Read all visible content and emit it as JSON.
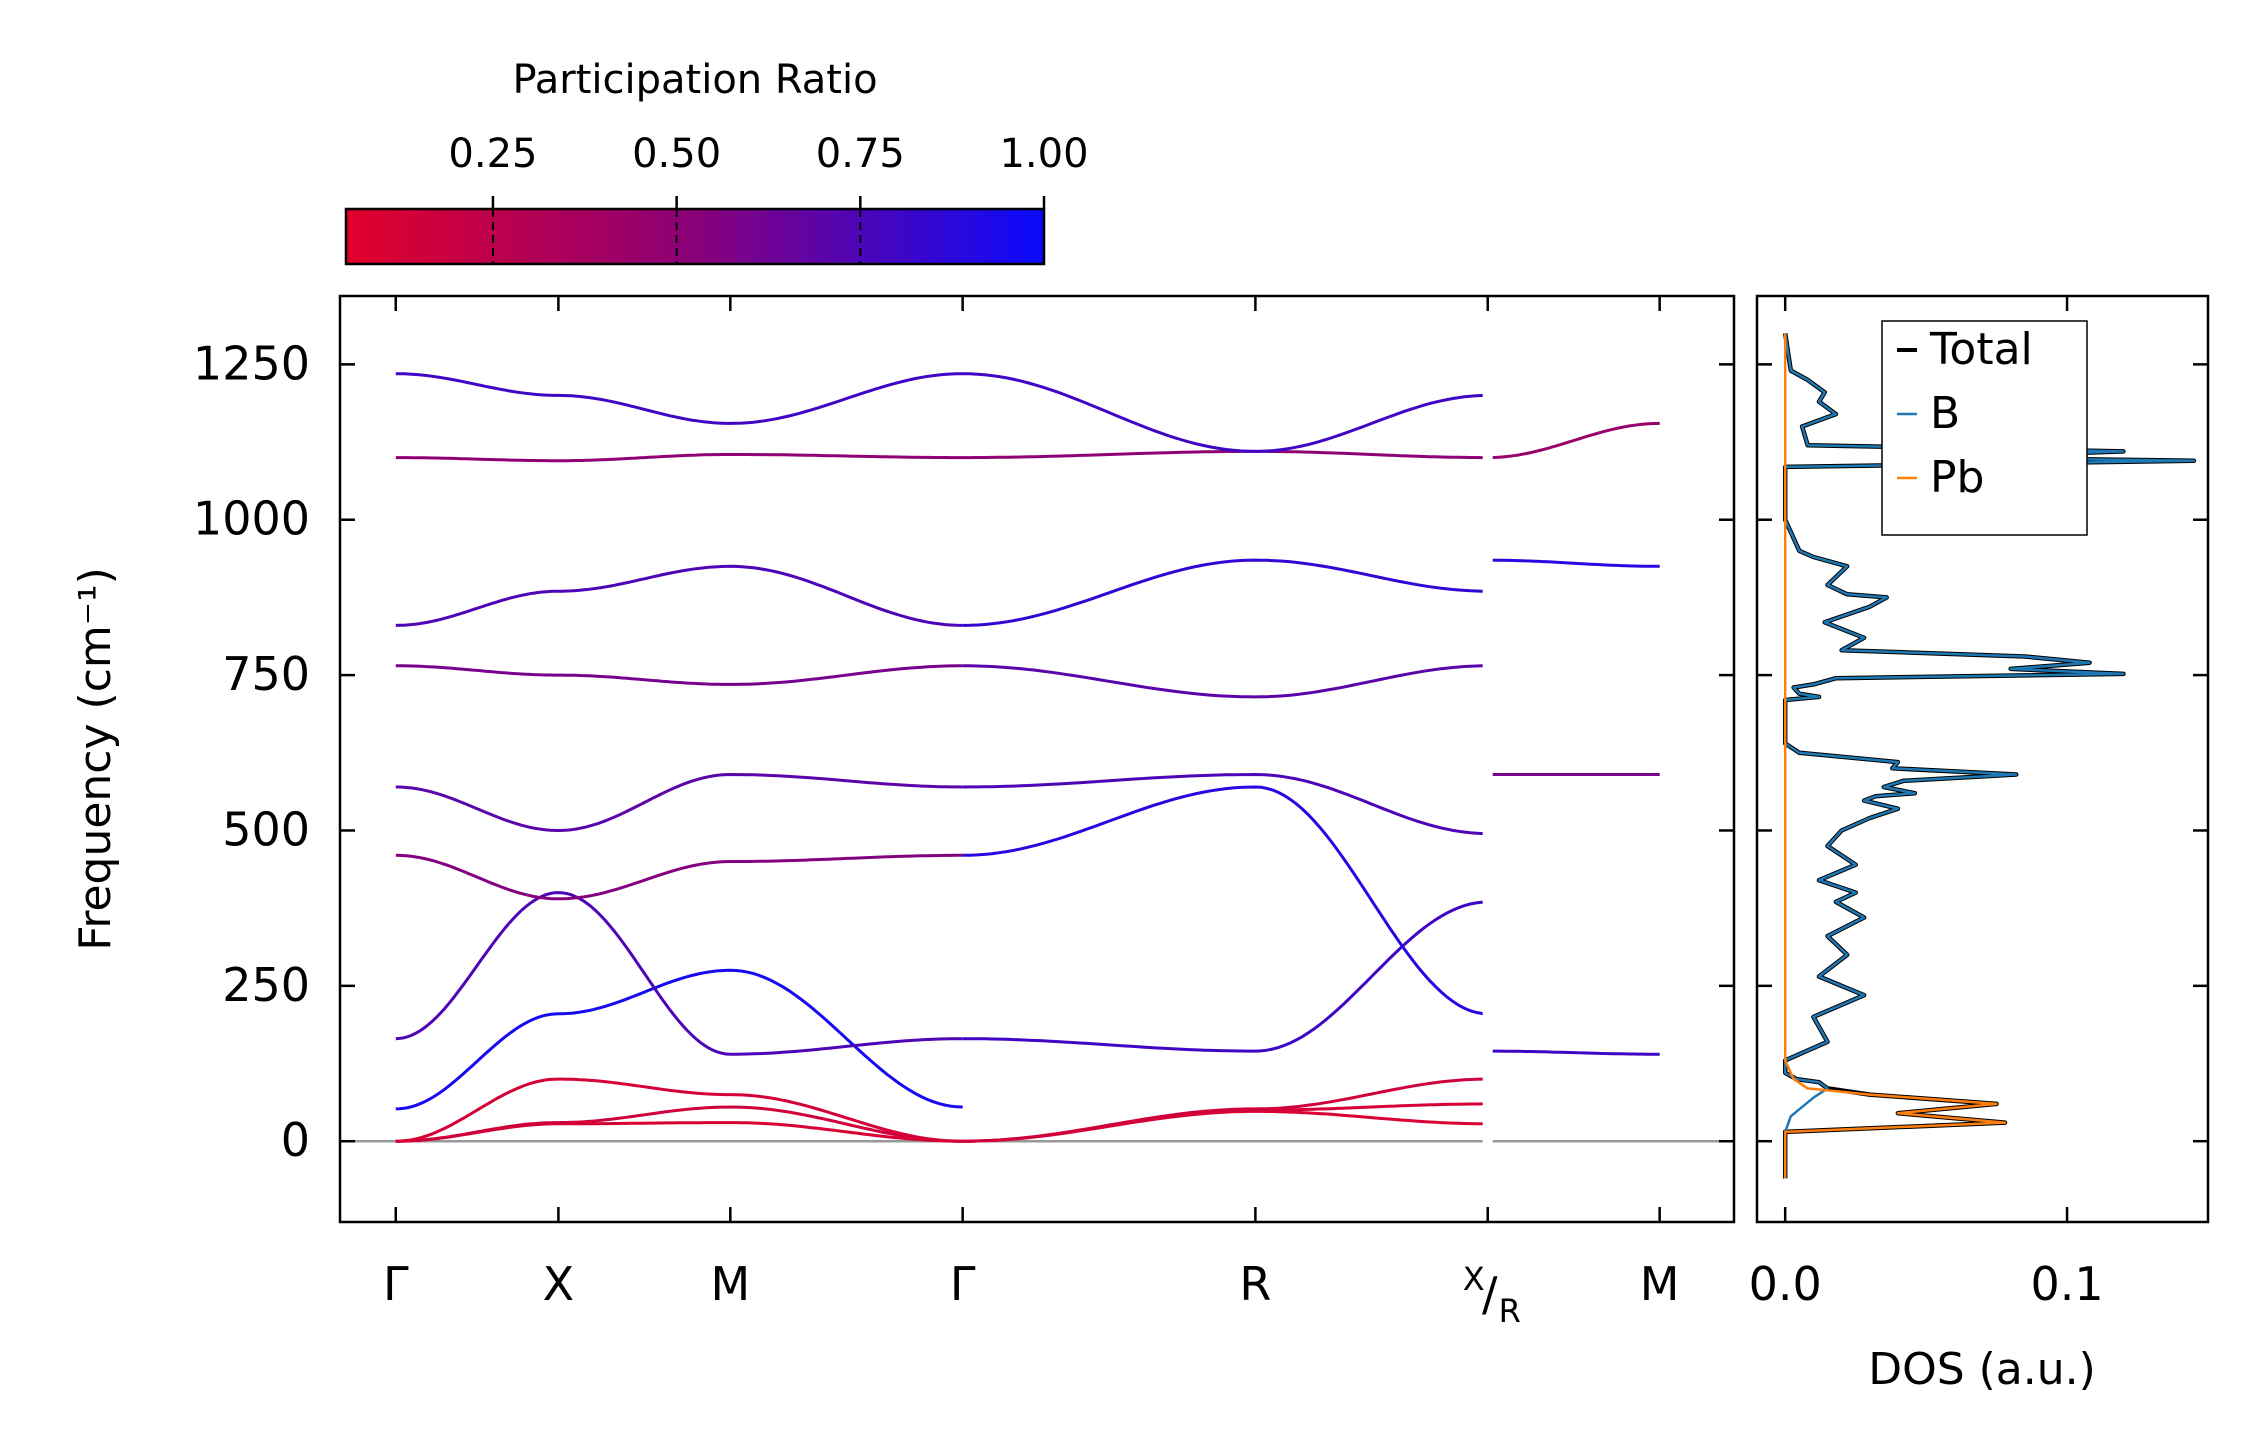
{
  "chart_data": [
    {
      "type": "line",
      "panel": "phonon-band-structure",
      "ylabel": "Frequency (cm⁻¹)",
      "ylim": [
        -130,
        1360
      ],
      "yticks": [
        0,
        250,
        500,
        750,
        1000,
        1250
      ],
      "ytick_labels": [
        "0",
        "250",
        "500",
        "750",
        "1000",
        "1250"
      ],
      "xlim": [
        -0.12,
        2.88
      ],
      "kpoints": [
        {
          "label": "Γ",
          "x": 0
        },
        {
          "label": "X",
          "x": 0.35
        },
        {
          "label": "M",
          "x": 0.72
        },
        {
          "label": "Γ",
          "x": 1.22
        },
        {
          "label": "R",
          "x": 1.85
        },
        {
          "label": "X/R",
          "x": 2.35,
          "display": {
            "sup": "X",
            "slash": "/",
            "sub": "R"
          }
        },
        {
          "label": "M",
          "x": 2.72
        }
      ],
      "zero_line": 0,
      "colorbar": {
        "title": "Participation Ratio",
        "range": [
          0.05,
          1.0
        ],
        "ticks": [
          0.25,
          0.5,
          0.75,
          1.0
        ],
        "tick_labels": [
          "0.25",
          "0.50",
          "0.75",
          "1.00"
        ],
        "low_color": "#e2002b",
        "mid_color": "#8a0078",
        "high_color": "#0a0afe"
      },
      "series": [
        {
          "name": "band-1",
          "x": [
            0,
            0.35,
            0.72,
            1.22
          ],
          "values": [
            0,
            28,
            30,
            0
          ],
          "pr": 0.1
        },
        {
          "name": "band-2",
          "x": [
            0,
            0.35,
            0.72,
            1.22
          ],
          "values": [
            0,
            30,
            55,
            0
          ],
          "pr": 0.15
        },
        {
          "name": "band-3",
          "x": [
            0,
            0.35,
            0.72,
            1.22
          ],
          "values": [
            0,
            100,
            75,
            0
          ],
          "pr": 0.12
        },
        {
          "name": "band-4",
          "x": [
            1.22,
            1.85,
            2.35
          ],
          "values": [
            0,
            48,
            28
          ],
          "pr": 0.1
        },
        {
          "name": "band-5",
          "x": [
            1.22,
            1.85,
            2.35
          ],
          "values": [
            0,
            50,
            60
          ],
          "pr": 0.12
        },
        {
          "name": "band-6",
          "x": [
            1.22,
            1.85,
            2.35
          ],
          "values": [
            0,
            52,
            100
          ],
          "pr": 0.15
        },
        {
          "name": "band-7",
          "x": [
            0,
            0.35,
            0.72,
            1.22
          ],
          "values": [
            52,
            205,
            275,
            55
          ],
          "pr": 0.95
        },
        {
          "name": "band-8",
          "x": [
            0,
            0.35,
            0.72,
            1.22
          ],
          "values": [
            165,
            400,
            140,
            165
          ],
          "pr": 0.75
        },
        {
          "name": "band-9",
          "x": [
            0,
            0.35,
            0.72,
            1.22
          ],
          "values": [
            460,
            390,
            450,
            460
          ],
          "pr": 0.55
        },
        {
          "name": "band-10",
          "x": [
            0,
            0.35,
            0.72,
            1.22
          ],
          "values": [
            570,
            500,
            590,
            570
          ],
          "pr": 0.7
        },
        {
          "name": "band-11",
          "x": [
            1.22,
            1.85,
            2.35
          ],
          "values": [
            165,
            145,
            385
          ],
          "pr": 0.8
        },
        {
          "name": "band-12",
          "x": [
            1.22,
            1.85,
            2.35
          ],
          "values": [
            460,
            570,
            205
          ],
          "pr": 0.9
        },
        {
          "name": "band-13",
          "x": [
            1.22,
            1.85,
            2.35
          ],
          "values": [
            570,
            590,
            495
          ],
          "pr": 0.75
        },
        {
          "name": "band-14",
          "x": [
            2.35,
            2.72
          ],
          "values": [
            145,
            140
          ],
          "pr": 0.8
        },
        {
          "name": "band-15",
          "x": [
            2.35,
            2.72
          ],
          "values": [
            590,
            590
          ],
          "pr": 0.6
        },
        {
          "name": "band-16",
          "x": [
            0,
            0.35,
            0.72,
            1.22
          ],
          "values": [
            765,
            750,
            735,
            765
          ],
          "pr": 0.6
        },
        {
          "name": "band-17",
          "x": [
            0,
            0.35,
            0.72,
            1.22
          ],
          "values": [
            830,
            885,
            925,
            830
          ],
          "pr": 0.75
        },
        {
          "name": "band-18",
          "x": [
            1.22,
            1.85,
            2.35
          ],
          "values": [
            765,
            715,
            765
          ],
          "pr": 0.7
        },
        {
          "name": "band-19",
          "x": [
            1.22,
            1.85,
            2.35
          ],
          "values": [
            830,
            935,
            885
          ],
          "pr": 0.85
        },
        {
          "name": "band-20",
          "x": [
            2.35,
            2.72
          ],
          "values": [
            935,
            925
          ],
          "pr": 0.9
        },
        {
          "name": "band-21",
          "x": [
            0,
            0.35,
            0.72,
            1.22,
            1.85,
            2.35
          ],
          "values": [
            1100,
            1095,
            1105,
            1100,
            1110,
            1100
          ],
          "pr": 0.5
        },
        {
          "name": "band-22",
          "x": [
            0,
            0.35,
            0.72,
            1.22,
            1.85,
            2.35
          ],
          "values": [
            1235,
            1200,
            1155,
            1235,
            1110,
            1200
          ],
          "pr": 0.8
        },
        {
          "name": "band-23",
          "x": [
            2.35,
            2.72
          ],
          "values": [
            1100,
            1155
          ],
          "pr": 0.45
        }
      ]
    },
    {
      "type": "line",
      "panel": "density-of-states",
      "xlabel": "DOS (a.u.)",
      "xlim": [
        -0.01,
        0.15
      ],
      "ylim": [
        -130,
        1360
      ],
      "xticks": [
        0.0,
        0.1
      ],
      "xtick_labels": [
        "0.0",
        "0.1"
      ],
      "legend": {
        "position": "top-right",
        "entries": [
          "Total",
          "B",
          "Pb"
        ]
      },
      "series": [
        {
          "name": "Total",
          "color": "#000000",
          "x": [
            0,
            0,
            0.078,
            0.04,
            0.075,
            0.03,
            0.015,
            0.012,
            0.004,
            0,
            0,
            0.015,
            0.01,
            0.028,
            0.012,
            0.022,
            0.015,
            0.028,
            0.018,
            0.025,
            0.012,
            0.025,
            0.015,
            0.02,
            0.03,
            0.04,
            0.028,
            0.032,
            0.046,
            0.035,
            0.042,
            0.082,
            0.038,
            0.04,
            0.005,
            0,
            0,
            0.012,
            0.005,
            0.003,
            0.01,
            0.018,
            0.12,
            0.08,
            0.108,
            0.085,
            0.02,
            0.028,
            0.014,
            0.03,
            0.036,
            0.022,
            0.015,
            0.022,
            0.01,
            0.005,
            0,
            0,
            0.145,
            0.058,
            0.12,
            0.008,
            0.006,
            0.018,
            0.012,
            0.014,
            0.008,
            0.002,
            0
          ],
          "values": [
            -60,
            15,
            30,
            45,
            60,
            75,
            85,
            95,
            100,
            110,
            130,
            160,
            200,
            235,
            265,
            300,
            330,
            360,
            385,
            400,
            420,
            445,
            475,
            500,
            520,
            535,
            548,
            555,
            560,
            570,
            580,
            590,
            600,
            610,
            625,
            640,
            710,
            715,
            720,
            730,
            735,
            745,
            752,
            760,
            770,
            780,
            790,
            810,
            835,
            860,
            875,
            880,
            895,
            925,
            940,
            950,
            1000,
            1085,
            1095,
            1100,
            1110,
            1120,
            1150,
            1170,
            1190,
            1205,
            1225,
            1240,
            1300
          ]
        },
        {
          "name": "B",
          "color": "#1f77b4",
          "x": [
            0,
            0,
            0.002,
            0.01,
            0.015,
            0.012,
            0.004,
            0,
            0,
            0.015,
            0.01,
            0.028,
            0.012,
            0.022,
            0.015,
            0.028,
            0.018,
            0.025,
            0.012,
            0.025,
            0.015,
            0.02,
            0.03,
            0.04,
            0.028,
            0.032,
            0.046,
            0.035,
            0.042,
            0.082,
            0.038,
            0.04,
            0.005,
            0,
            0,
            0.012,
            0.005,
            0.003,
            0.01,
            0.018,
            0.12,
            0.08,
            0.108,
            0.085,
            0.02,
            0.028,
            0.014,
            0.03,
            0.036,
            0.022,
            0.015,
            0.022,
            0.01,
            0.005,
            0,
            0,
            0.145,
            0.058,
            0.12,
            0.008,
            0.006,
            0.018,
            0.012,
            0.014,
            0.008,
            0.002,
            0
          ],
          "values": [
            -60,
            15,
            40,
            70,
            85,
            95,
            100,
            110,
            130,
            160,
            200,
            235,
            265,
            300,
            330,
            360,
            385,
            400,
            420,
            445,
            475,
            500,
            520,
            535,
            548,
            555,
            560,
            570,
            580,
            590,
            600,
            610,
            625,
            640,
            710,
            715,
            720,
            730,
            735,
            745,
            752,
            760,
            770,
            780,
            790,
            810,
            835,
            860,
            875,
            880,
            895,
            925,
            940,
            950,
            1000,
            1085,
            1095,
            1100,
            1110,
            1120,
            1150,
            1170,
            1190,
            1205,
            1225,
            1240,
            1300
          ]
        },
        {
          "name": "Pb",
          "color": "#ff7f0e",
          "x": [
            0,
            0,
            0.078,
            0.04,
            0.075,
            0.03,
            0.008,
            0.003,
            0,
            0
          ],
          "values": [
            -60,
            15,
            30,
            45,
            60,
            75,
            85,
            100,
            130,
            1300
          ]
        }
      ]
    }
  ]
}
